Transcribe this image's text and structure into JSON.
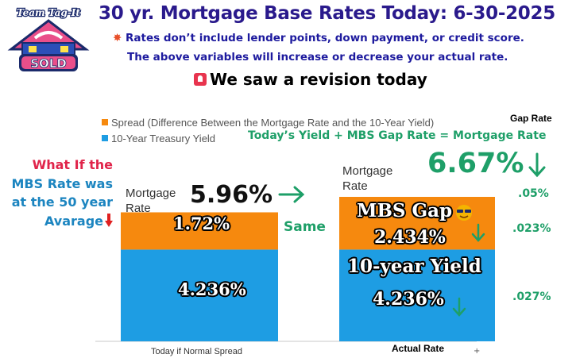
{
  "header": {
    "logo_text_top": "Team Tag-It",
    "logo_text_bottom": "SOLD",
    "title": "30 yr. Mortgage Base Rates Today: 6-30-2025",
    "note_line1": "Rates don’t include lender points, down payment, or credit score.",
    "note_line2": "The above variables will increase or decrease your actual rate.",
    "revision": "We saw a revision today"
  },
  "legend": {
    "spread": "Spread (Difference Between the Mortgage Rate and the 10-Year Yield)",
    "treasury": "10-Year Treasury Yield"
  },
  "gap_rate_label": "Gap Rate",
  "formula": "Today’s  Yield +  MBS Gap Rate = Mortgage Rate",
  "what_if": {
    "line1": "What If the",
    "line2": "MBS Rate was",
    "line3": "at the 50 year",
    "line4": "Avarage"
  },
  "left_bar": {
    "mortgage_label_1": "Mortgage",
    "mortgage_label_2": "Rate",
    "total_rate": "5.96%",
    "spread_label": "1.72%",
    "yield_label": "4.236%",
    "x_label": "Today if Normal Spread"
  },
  "same_label": "Same",
  "right_bar": {
    "mortgage_label_1": "Mortgage",
    "mortgage_label_2": "Rate",
    "total_rate": "6.67%",
    "gap_title": "MBS Gap",
    "spread_label": "2.434%",
    "yield_title": "10-year Yield",
    "yield_label": "4.236%",
    "x_label": "Actual Rate"
  },
  "gap_changes": [
    ".05%",
    ".023%",
    ".027%"
  ],
  "tiny_mark": "+",
  "chart_data": {
    "type": "bar",
    "stacked": true,
    "categories": [
      "Today if Normal Spread",
      "Actual Rate"
    ],
    "series": [
      {
        "name": "10-Year Treasury Yield",
        "values": [
          4.236,
          4.236
        ]
      },
      {
        "name": "Spread (Difference Between the Mortgage Rate and the 10-Year Yield)",
        "values": [
          1.72,
          2.434
        ]
      }
    ],
    "totals": [
      5.96,
      6.67
    ],
    "legend_position": "top-left",
    "grid": false,
    "ylim": [
      0,
      6.67
    ],
    "colors": {
      "yield": "#1e9de3",
      "spread": "#f6890e"
    }
  },
  "colors": {
    "title": "#2a1a8c",
    "green": "#1e9f68",
    "red": "#e0244a",
    "blue_text": "#1c85c0"
  }
}
